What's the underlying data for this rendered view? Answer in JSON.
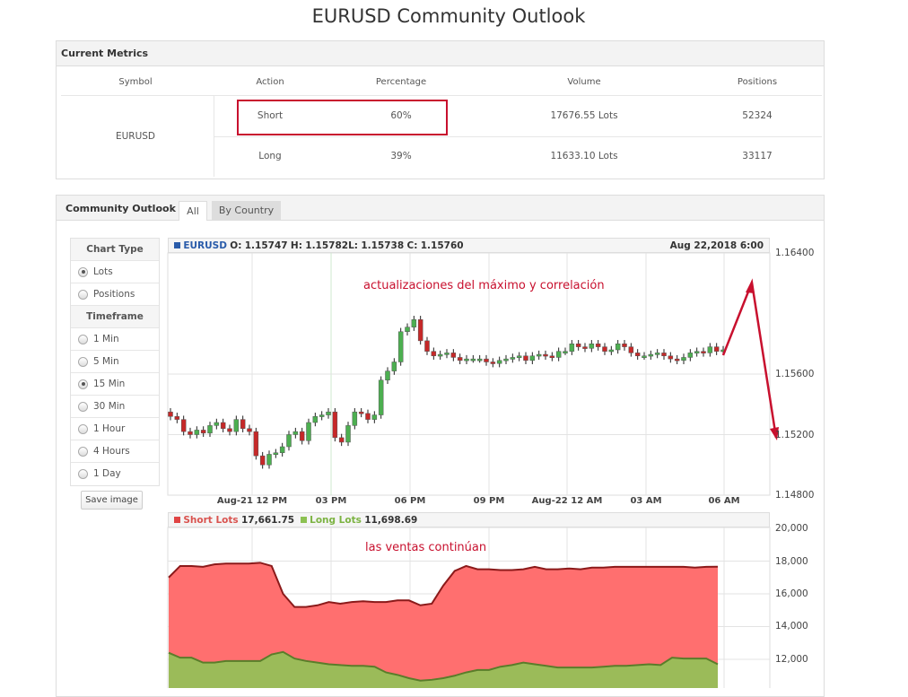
{
  "title": "EURUSD Community Outlook",
  "metrics": {
    "heading": "Current Metrics",
    "columns": [
      "Symbol",
      "Action",
      "Percentage",
      "Volume",
      "Positions"
    ],
    "symbol": "EURUSD",
    "rows": [
      {
        "action": "Short",
        "percentage": "60%",
        "volume": "17676.55 Lots",
        "positions": "52324"
      },
      {
        "action": "Long",
        "percentage": "39%",
        "volume": "11633.10 Lots",
        "positions": "33117"
      }
    ]
  },
  "outlook": {
    "heading": "Community Outlook",
    "tabs": [
      "All",
      "By Country"
    ],
    "chart_type_label": "Chart Type",
    "chart_types": [
      "Lots",
      "Positions"
    ],
    "chart_type_selected": "Lots",
    "timeframe_label": "Timeframe",
    "timeframes": [
      "1 Min",
      "5 Min",
      "15 Min",
      "30 Min",
      "1 Hour",
      "4 Hours",
      "1 Day"
    ],
    "timeframe_selected": "15 Min",
    "save_label": "Save image"
  },
  "colors": {
    "up": "#4caf50",
    "down": "#c62828",
    "short": "#ff6f6f",
    "long": "#9bbb59",
    "annotation": "#c8102e"
  },
  "chart_data": [
    {
      "type": "candlestick",
      "symbol": "EURUSD",
      "ohlc": {
        "o_label": "O:",
        "o": "1.15747",
        "h_label": "H:",
        "h": "1.15782",
        "l_label": "L:",
        "l": "1.15738",
        "c_label": "C:",
        "c": "1.15760"
      },
      "date": "Aug 22,2018 6:00",
      "yticks": [
        "1.16400",
        "1.15600",
        "1.15200",
        "1.14800"
      ],
      "ylim": [
        1.148,
        1.164
      ],
      "xticks": [
        "Aug-21 12 PM",
        "03 PM",
        "06 PM",
        "09 PM",
        "Aug-22 12 AM",
        "03 AM",
        "06 AM"
      ],
      "closes": [
        1.1532,
        1.153,
        1.1522,
        1.152,
        1.1523,
        1.1521,
        1.1526,
        1.1528,
        1.1524,
        1.1522,
        1.153,
        1.1524,
        1.1522,
        1.1506,
        1.15,
        1.1507,
        1.1508,
        1.1512,
        1.152,
        1.1522,
        1.1516,
        1.1528,
        1.1532,
        1.1533,
        1.1535,
        1.1518,
        1.1515,
        1.1526,
        1.1535,
        1.1534,
        1.153,
        1.1533,
        1.1556,
        1.1562,
        1.1568,
        1.1588,
        1.1591,
        1.1596,
        1.1582,
        1.1575,
        1.1572,
        1.1573,
        1.1574,
        1.1571,
        1.1569,
        1.157,
        1.157,
        1.157,
        1.1568,
        1.1567,
        1.1569,
        1.157,
        1.1571,
        1.1572,
        1.1569,
        1.1572,
        1.1573,
        1.1572,
        1.1571,
        1.1575,
        1.1575,
        1.158,
        1.1578,
        1.1577,
        1.158,
        1.1578,
        1.1575,
        1.1576,
        1.158,
        1.1578,
        1.1574,
        1.1572,
        1.1572,
        1.1573,
        1.1574,
        1.1572,
        1.157,
        1.1569,
        1.1571,
        1.1574,
        1.1575,
        1.1574,
        1.1578,
        1.1575,
        1.1576
      ],
      "annotation": "actualizaciones del máximo y correlación"
    },
    {
      "type": "area",
      "legend": [
        {
          "name": "Short Lots",
          "value": "17,661.75"
        },
        {
          "name": "Long Lots",
          "value": "11,698.69"
        }
      ],
      "yticks": [
        "20,000",
        "18,000",
        "16,000",
        "14,000",
        "12,000"
      ],
      "ylim": [
        10000,
        20000
      ],
      "short": [
        17000,
        17700,
        17700,
        17650,
        17800,
        17850,
        17850,
        17850,
        17900,
        17700,
        16000,
        15200,
        15200,
        15300,
        15500,
        15400,
        15500,
        15550,
        15500,
        15500,
        15600,
        15600,
        15300,
        15400,
        16500,
        17400,
        17700,
        17500,
        17500,
        17450,
        17450,
        17500,
        17650,
        17500,
        17500,
        17550,
        17500,
        17600,
        17600,
        17650,
        17650,
        17650,
        17650,
        17650,
        17650,
        17650,
        17600,
        17650,
        17660
      ],
      "long": [
        12400,
        12100,
        12100,
        11800,
        11800,
        11900,
        11900,
        11900,
        11900,
        12300,
        12450,
        12050,
        11900,
        11800,
        11700,
        11650,
        11600,
        11600,
        11550,
        11200,
        11050,
        10850,
        10700,
        10750,
        10850,
        11000,
        11200,
        11350,
        11350,
        11550,
        11650,
        11800,
        11700,
        11600,
        11500,
        11500,
        11500,
        11500,
        11550,
        11600,
        11600,
        11650,
        11700,
        11650,
        12100,
        12050,
        12050,
        12050,
        11700
      ],
      "annotation": "las ventas continúan"
    }
  ]
}
